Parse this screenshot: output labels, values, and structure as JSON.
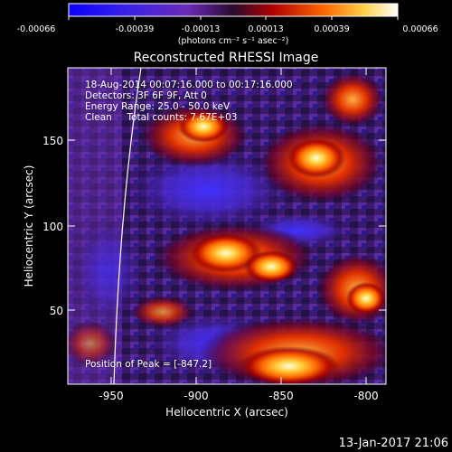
{
  "colorbar": {
    "tick_labels": [
      "-0.00066",
      "-0.00039",
      "-0.00013",
      "0.00013",
      "0.00039",
      "0.00066"
    ],
    "unit_label": "(photons cm⁻² s⁻¹ asec⁻²)"
  },
  "plot": {
    "title": "Reconstructed RHESSI Image",
    "xlabel": "Heliocentric X (arcsec)",
    "ylabel": "Heliocentric Y (arcsec)",
    "x_ticks": [
      "-950",
      "-900",
      "-850",
      "-800"
    ],
    "y_ticks": [
      "150",
      "100",
      "50"
    ],
    "xlim": [
      -972,
      -787
    ],
    "ylim": [
      2,
      180
    ]
  },
  "info": {
    "line1": "18-Aug-2014 00:07:16.000 to 00:17:16.000",
    "line2": "Detectors: 3F 6F 9F, Att 0",
    "line3": "Energy Range: 25.0 - 50.0 keV",
    "line4": "Clean     Total counts: 7.67E+03"
  },
  "position_label": "Position of Peak = [-847.2]",
  "footer_timestamp": "13-Jan-2017 21:06"
}
